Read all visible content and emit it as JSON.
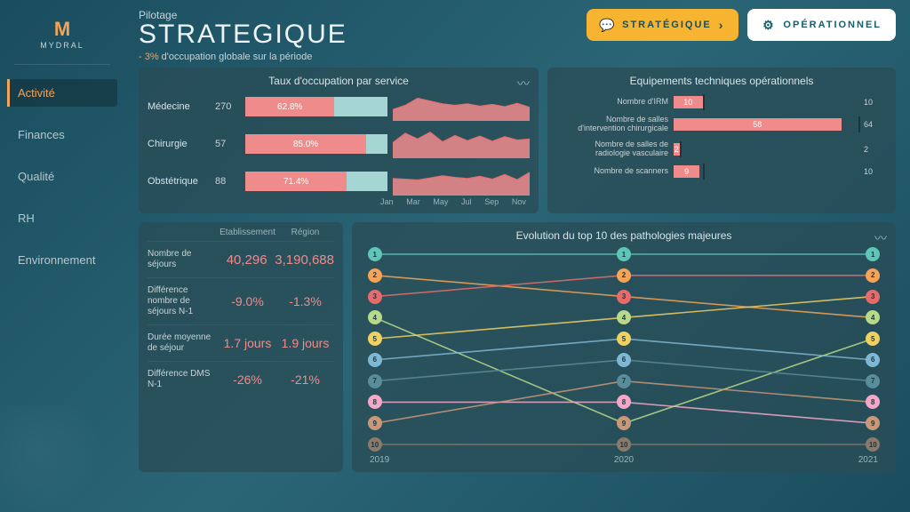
{
  "brand": {
    "mark": "M",
    "name": "MYDRAL"
  },
  "nav": {
    "items": [
      {
        "id": "activite",
        "label": "Activité",
        "active": true
      },
      {
        "id": "finances",
        "label": "Finances"
      },
      {
        "id": "qualite",
        "label": "Qualité"
      },
      {
        "id": "rh",
        "label": "RH"
      },
      {
        "id": "environnement",
        "label": "Environnement"
      }
    ]
  },
  "header": {
    "subtitle": "Pilotage",
    "title": "STRATEGIQUE",
    "delta_val": "- 3%",
    "delta_text": " d'occupation globale sur la période",
    "btn_strat": "STRATÉGIQUE",
    "btn_oper": "OPÉRATIONNEL"
  },
  "occupancy": {
    "title": "Taux d'occupation par service",
    "rows": [
      {
        "label": "Médecine",
        "count": "270",
        "pct": 62.8,
        "pct_label": "62.8%",
        "spark": [
          40,
          55,
          80,
          70,
          60,
          55,
          60,
          52,
          58,
          50,
          62,
          48
        ]
      },
      {
        "label": "Chirurgie",
        "count": "57",
        "pct": 85.0,
        "pct_label": "85.0%",
        "spark": [
          55,
          88,
          68,
          92,
          58,
          80,
          62,
          78,
          60,
          76,
          64,
          68
        ]
      },
      {
        "label": "Obstétrique",
        "count": "88",
        "pct": 71.4,
        "pct_label": "71.4%",
        "spark": [
          60,
          58,
          55,
          62,
          70,
          64,
          60,
          68,
          58,
          74,
          56,
          82
        ]
      }
    ],
    "months": [
      "Jan",
      "Mar",
      "May",
      "Jul",
      "Sep",
      "Nov"
    ],
    "bar_fill": "#f08b8b",
    "bar_bg": "#a5d6d3"
  },
  "equip": {
    "title": "Equipements techniques opérationnels",
    "rows": [
      {
        "label": "Nombre d'IRM",
        "val": 10,
        "max": 10,
        "val_label": "10",
        "max_label": "10"
      },
      {
        "label": "Nombre de salles d'intervention chirurgicale",
        "val": 58,
        "max": 64,
        "val_label": "58",
        "max_label": "64"
      },
      {
        "label": "Nombre de salles de radiologie vasculaire",
        "val": 2,
        "max": 2,
        "val_label": "2",
        "max_label": "2"
      },
      {
        "label": "Nombre de scanners",
        "val": 9,
        "max": 10,
        "val_label": "9",
        "max_label": "10"
      }
    ],
    "max_overall": 64,
    "bar_color": "#f08b8b"
  },
  "stats": {
    "col1": "Etablissement",
    "col2": "Région",
    "rows": [
      {
        "label": "Nombre de séjours",
        "v1": "40,296",
        "v2": "3,190,688",
        "large": true
      },
      {
        "label": "Différence nombre de séjours N-1",
        "v1": "-9.0%",
        "v2": "-1.3%"
      },
      {
        "label": "Durée moyenne de séjour",
        "v1": "1.7 jours",
        "v2": "1.9 jours"
      },
      {
        "label": "Différence DMS N-1",
        "v1": "-26%",
        "v2": "-21%"
      }
    ]
  },
  "evolution": {
    "title": "Evolution du top 10 des pathologies majeures",
    "years": [
      "2019",
      "2020",
      "2021"
    ],
    "colors": [
      "#5ec6b8",
      "#f5a356",
      "#e86b6b",
      "#b8d98a",
      "#f0d060",
      "#7fb8d4",
      "#5a8c99",
      "#f4a8c8",
      "#c89878",
      "#8a7a6a"
    ],
    "ranks": {
      "2019": [
        1,
        2,
        3,
        4,
        5,
        6,
        7,
        8,
        9,
        10
      ],
      "2020": [
        1,
        2,
        3,
        4,
        5,
        6,
        7,
        8,
        9,
        10
      ],
      "2021": [
        1,
        2,
        3,
        4,
        5,
        6,
        7,
        8,
        9,
        10
      ]
    },
    "lines": [
      {
        "color": "#5ec6b8",
        "positions": [
          1,
          1,
          1
        ]
      },
      {
        "color": "#f5a356",
        "positions": [
          2,
          3,
          4
        ]
      },
      {
        "color": "#e86b6b",
        "positions": [
          3,
          2,
          2
        ]
      },
      {
        "color": "#b8d98a",
        "positions": [
          4,
          9,
          5
        ]
      },
      {
        "color": "#f0d060",
        "positions": [
          5,
          4,
          3
        ]
      },
      {
        "color": "#7fb8d4",
        "positions": [
          6,
          5,
          6
        ]
      },
      {
        "color": "#5a8c99",
        "positions": [
          7,
          6,
          7
        ]
      },
      {
        "color": "#f4a8c8",
        "positions": [
          8,
          8,
          9
        ]
      },
      {
        "color": "#c89878",
        "positions": [
          9,
          7,
          8
        ]
      },
      {
        "color": "#8a7a6a",
        "positions": [
          10,
          10,
          10
        ]
      }
    ]
  }
}
